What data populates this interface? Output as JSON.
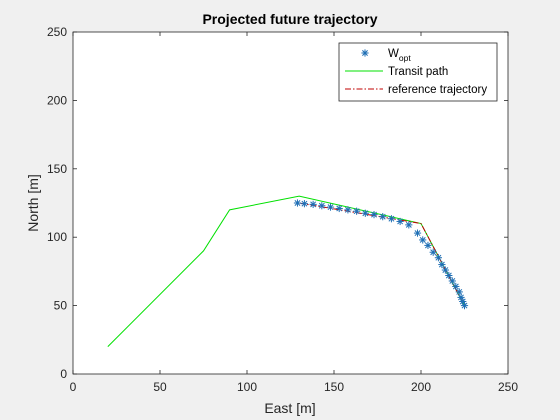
{
  "chart_data": {
    "type": "line",
    "title": "Projected future trajectory",
    "xlabel": "East [m]",
    "ylabel": "North [m]",
    "xlim": [
      0,
      250
    ],
    "ylim": [
      0,
      250
    ],
    "xticks": [
      0,
      50,
      100,
      150,
      200,
      250
    ],
    "yticks": [
      0,
      50,
      100,
      150,
      200,
      250
    ],
    "grid": false,
    "legend_position": "top-right",
    "series": [
      {
        "name": "Transit path",
        "label_main": "Transit path",
        "style": "solid",
        "color": "#00e000",
        "x": [
          20,
          75,
          90,
          130,
          200,
          225
        ],
        "y": [
          20,
          90,
          120,
          130,
          110,
          50
        ]
      },
      {
        "name": "reference trajectory",
        "label_main": "reference trajectory",
        "style": "dashdot",
        "color": "#c00000",
        "x": [
          130,
          200,
          225
        ],
        "y": [
          125,
          110,
          50
        ]
      },
      {
        "name": "W_opt",
        "label_main": "W",
        "label_sub": "opt",
        "style": "marker-asterisk",
        "color": "#1f6fb5",
        "x": [
          129,
          133,
          138,
          143,
          148,
          153,
          158,
          163,
          168,
          173,
          178,
          183,
          188,
          193,
          198,
          201,
          204,
          207,
          210,
          212,
          214,
          216,
          218,
          220,
          222,
          223,
          224,
          225
        ],
        "y": [
          125,
          124.5,
          124,
          123,
          122,
          121,
          120,
          119,
          117.5,
          116.5,
          115,
          113.5,
          111.5,
          109,
          103,
          98,
          94,
          89,
          85,
          80,
          76,
          72,
          68,
          64,
          60,
          56,
          53,
          50
        ]
      }
    ]
  }
}
